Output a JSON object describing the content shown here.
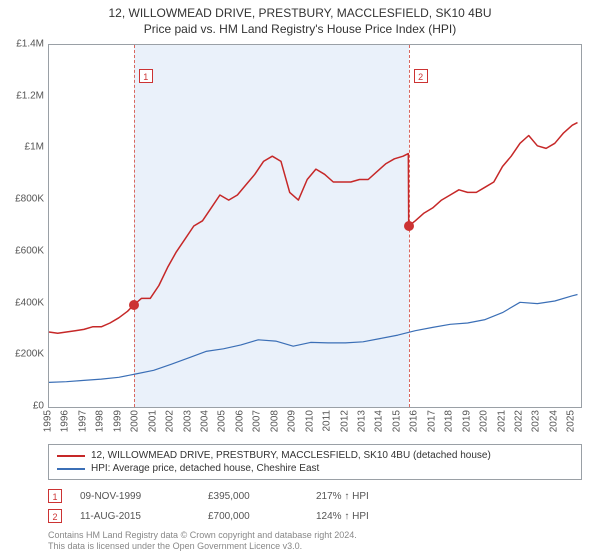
{
  "title_line1": "12, WILLOWMEAD DRIVE, PRESTBURY, MACCLESFIELD, SK10 4BU",
  "title_line2": "Price paid vs. HM Land Registry's House Price Index (HPI)",
  "chart": {
    "type": "line",
    "xlim": [
      1995,
      2025.5
    ],
    "ylim": [
      0,
      1400000
    ],
    "yticks": [
      0,
      200000,
      400000,
      600000,
      800000,
      1000000,
      1200000,
      1400000
    ],
    "ytick_labels": [
      "£0",
      "£200K",
      "£400K",
      "£600K",
      "£800K",
      "£1M",
      "£1.2M",
      "£1.4M"
    ],
    "xticks": [
      1995,
      1996,
      1997,
      1998,
      1999,
      2000,
      2001,
      2002,
      2003,
      2004,
      2005,
      2006,
      2007,
      2008,
      2009,
      2010,
      2011,
      2012,
      2013,
      2014,
      2015,
      2016,
      2017,
      2018,
      2019,
      2020,
      2021,
      2022,
      2023,
      2024,
      2025
    ],
    "background_color": "#ffffff",
    "border_color": "#9aa0a6",
    "shade_color": "#eaf1fa",
    "shade_range": [
      1999.86,
      2015.62
    ],
    "ref_lines": [
      {
        "label": "1",
        "x": 1999.86,
        "color": "#d9675f"
      },
      {
        "label": "2",
        "x": 2015.62,
        "color": "#d9675f"
      }
    ],
    "markers": [
      {
        "x": 1999.86,
        "y": 395000,
        "color": "#c33"
      },
      {
        "x": 2015.62,
        "y": 700000,
        "color": "#c33"
      }
    ],
    "series": [
      {
        "name": "property",
        "label": "12, WILLOWMEAD DRIVE, PRESTBURY, MACCLESFIELD, SK10 4BU (detached house)",
        "color": "#c62828",
        "width": 1.5,
        "points": [
          [
            1995,
            290000
          ],
          [
            1995.5,
            285000
          ],
          [
            1996,
            290000
          ],
          [
            1996.5,
            295000
          ],
          [
            1997,
            300000
          ],
          [
            1997.5,
            310000
          ],
          [
            1998,
            310000
          ],
          [
            1998.5,
            325000
          ],
          [
            1999,
            345000
          ],
          [
            1999.5,
            370000
          ],
          [
            1999.86,
            395000
          ],
          [
            2000.3,
            420000
          ],
          [
            2000.8,
            420000
          ],
          [
            2001.3,
            470000
          ],
          [
            2001.8,
            540000
          ],
          [
            2002.3,
            600000
          ],
          [
            2002.8,
            650000
          ],
          [
            2003.3,
            700000
          ],
          [
            2003.8,
            720000
          ],
          [
            2004.3,
            770000
          ],
          [
            2004.8,
            820000
          ],
          [
            2005.3,
            800000
          ],
          [
            2005.8,
            820000
          ],
          [
            2006.3,
            860000
          ],
          [
            2006.8,
            900000
          ],
          [
            2007.3,
            950000
          ],
          [
            2007.8,
            970000
          ],
          [
            2008.3,
            950000
          ],
          [
            2008.8,
            830000
          ],
          [
            2009.3,
            800000
          ],
          [
            2009.8,
            880000
          ],
          [
            2010.3,
            920000
          ],
          [
            2010.8,
            900000
          ],
          [
            2011.3,
            870000
          ],
          [
            2011.8,
            870000
          ],
          [
            2012.3,
            870000
          ],
          [
            2012.8,
            880000
          ],
          [
            2013.3,
            880000
          ],
          [
            2013.8,
            910000
          ],
          [
            2014.3,
            940000
          ],
          [
            2014.8,
            960000
          ],
          [
            2015.3,
            970000
          ],
          [
            2015.6,
            980000
          ],
          [
            2015.62,
            700000
          ],
          [
            2016,
            720000
          ],
          [
            2016.5,
            750000
          ],
          [
            2017,
            770000
          ],
          [
            2017.5,
            800000
          ],
          [
            2018,
            820000
          ],
          [
            2018.5,
            840000
          ],
          [
            2019,
            830000
          ],
          [
            2019.5,
            830000
          ],
          [
            2020,
            850000
          ],
          [
            2020.5,
            870000
          ],
          [
            2021,
            930000
          ],
          [
            2021.5,
            970000
          ],
          [
            2022,
            1020000
          ],
          [
            2022.5,
            1050000
          ],
          [
            2023,
            1010000
          ],
          [
            2023.5,
            1000000
          ],
          [
            2024,
            1020000
          ],
          [
            2024.5,
            1060000
          ],
          [
            2025,
            1090000
          ],
          [
            2025.3,
            1100000
          ]
        ]
      },
      {
        "name": "hpi",
        "label": "HPI: Average price, detached house, Cheshire East",
        "color": "#3b6fb6",
        "width": 1.2,
        "points": [
          [
            1995,
            95000
          ],
          [
            1996,
            98000
          ],
          [
            1997,
            103000
          ],
          [
            1998,
            108000
          ],
          [
            1999,
            115000
          ],
          [
            2000,
            128000
          ],
          [
            2001,
            142000
          ],
          [
            2002,
            165000
          ],
          [
            2003,
            190000
          ],
          [
            2004,
            215000
          ],
          [
            2005,
            225000
          ],
          [
            2006,
            240000
          ],
          [
            2007,
            260000
          ],
          [
            2008,
            255000
          ],
          [
            2009,
            235000
          ],
          [
            2010,
            250000
          ],
          [
            2011,
            248000
          ],
          [
            2012,
            248000
          ],
          [
            2013,
            252000
          ],
          [
            2014,
            265000
          ],
          [
            2015,
            278000
          ],
          [
            2016,
            295000
          ],
          [
            2017,
            308000
          ],
          [
            2018,
            320000
          ],
          [
            2019,
            325000
          ],
          [
            2020,
            338000
          ],
          [
            2021,
            365000
          ],
          [
            2022,
            405000
          ],
          [
            2023,
            400000
          ],
          [
            2024,
            410000
          ],
          [
            2025,
            430000
          ],
          [
            2025.3,
            435000
          ]
        ]
      }
    ]
  },
  "legend": {
    "items": [
      {
        "color": "#c62828",
        "label": "12, WILLOWMEAD DRIVE, PRESTBURY, MACCLESFIELD, SK10 4BU (detached house)"
      },
      {
        "color": "#3b6fb6",
        "label": "HPI: Average price, detached house, Cheshire East"
      }
    ]
  },
  "transactions": [
    {
      "num": "1",
      "date": "09-NOV-1999",
      "price": "£395,000",
      "pct": "217% ↑ HPI"
    },
    {
      "num": "2",
      "date": "11-AUG-2015",
      "price": "£700,000",
      "pct": "124% ↑ HPI"
    }
  ],
  "footer_line1": "Contains HM Land Registry data © Crown copyright and database right 2024.",
  "footer_line2": "This data is licensed under the Open Government Licence v3.0."
}
